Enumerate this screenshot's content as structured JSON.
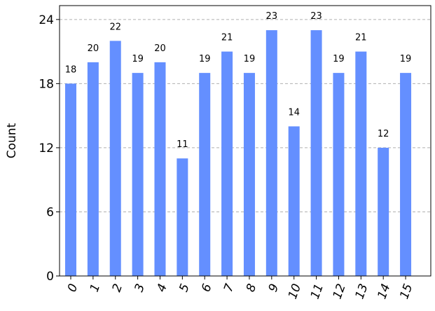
{
  "chart_data": {
    "type": "bar",
    "y_label": "Count",
    "categories": [
      "0",
      "1",
      "2",
      "3",
      "4",
      "5",
      "6",
      "7",
      "8",
      "9",
      "10",
      "11",
      "12",
      "13",
      "14",
      "15"
    ],
    "values": [
      18,
      20,
      22,
      19,
      20,
      11,
      19,
      21,
      19,
      23,
      14,
      23,
      19,
      21,
      12,
      19
    ],
    "color": "#648fff",
    "ylim": [
      0,
      25.3
    ],
    "yticks": [
      0,
      6,
      12,
      18,
      24
    ],
    "grid": true
  }
}
